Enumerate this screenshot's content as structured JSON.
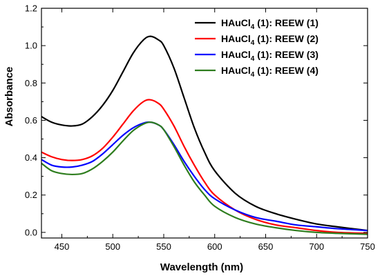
{
  "chart_data": {
    "type": "line",
    "title": "",
    "xlabel": "Wavelength (nm)",
    "ylabel": "Absorbance",
    "xlim": [
      430,
      750
    ],
    "ylim": [
      -0.03,
      1.2
    ],
    "xticks": [
      450,
      500,
      550,
      600,
      650,
      700,
      750
    ],
    "yticks": [
      0.0,
      0.2,
      0.4,
      0.6,
      0.8,
      1.0,
      1.2
    ],
    "ytick_labels": [
      "0.0",
      "0.2",
      "0.4",
      "0.6",
      "0.8",
      "1.0",
      "1.2"
    ],
    "grid": false,
    "legend_position": "top-right",
    "series": [
      {
        "name_main": "HAuCl",
        "name_sub": "4",
        "name_rest": " (1): REEW (1)",
        "color": "#000000",
        "x": [
          430,
          440,
          450,
          460,
          470,
          480,
          490,
          500,
          510,
          520,
          530,
          537,
          545,
          550,
          560,
          570,
          580,
          590,
          600,
          620,
          640,
          660,
          680,
          700,
          720,
          750
        ],
        "y": [
          0.62,
          0.59,
          0.575,
          0.57,
          0.58,
          0.62,
          0.68,
          0.76,
          0.86,
          0.96,
          1.03,
          1.05,
          1.03,
          1.0,
          0.88,
          0.72,
          0.56,
          0.43,
          0.33,
          0.21,
          0.14,
          0.1,
          0.07,
          0.045,
          0.03,
          0.01
        ]
      },
      {
        "name_main": "HAuCl",
        "name_sub": "4",
        "name_rest": " (1): REEW (2)",
        "color": "#ff0000",
        "x": [
          430,
          440,
          450,
          460,
          470,
          480,
          490,
          500,
          510,
          520,
          530,
          537,
          545,
          550,
          560,
          570,
          580,
          590,
          600,
          620,
          640,
          660,
          680,
          700,
          720,
          750
        ],
        "y": [
          0.43,
          0.405,
          0.39,
          0.385,
          0.39,
          0.41,
          0.45,
          0.51,
          0.58,
          0.65,
          0.7,
          0.71,
          0.69,
          0.66,
          0.57,
          0.46,
          0.36,
          0.27,
          0.2,
          0.12,
          0.07,
          0.04,
          0.025,
          0.01,
          0.0,
          -0.005
        ]
      },
      {
        "name_main": "HAuCl",
        "name_sub": "4",
        "name_rest": " (1): REEW (3)",
        "color": "#0000ff",
        "x": [
          430,
          440,
          450,
          460,
          470,
          480,
          490,
          500,
          510,
          520,
          530,
          537,
          545,
          550,
          560,
          570,
          580,
          590,
          600,
          620,
          640,
          660,
          680,
          700,
          720,
          750
        ],
        "y": [
          0.39,
          0.36,
          0.35,
          0.35,
          0.36,
          0.38,
          0.42,
          0.47,
          0.52,
          0.56,
          0.585,
          0.59,
          0.575,
          0.55,
          0.47,
          0.38,
          0.3,
          0.23,
          0.18,
          0.12,
          0.08,
          0.06,
          0.04,
          0.03,
          0.02,
          0.01
        ]
      },
      {
        "name_main": "HAuCl",
        "name_sub": "4",
        "name_rest": " (1): REEW (4)",
        "color": "#2e7d1e",
        "x": [
          430,
          440,
          450,
          460,
          470,
          480,
          490,
          500,
          510,
          520,
          530,
          537,
          545,
          550,
          560,
          570,
          580,
          590,
          600,
          620,
          640,
          660,
          680,
          700,
          720,
          750
        ],
        "y": [
          0.37,
          0.33,
          0.315,
          0.31,
          0.315,
          0.34,
          0.38,
          0.43,
          0.49,
          0.545,
          0.58,
          0.59,
          0.575,
          0.55,
          0.46,
          0.36,
          0.27,
          0.2,
          0.14,
          0.08,
          0.045,
          0.025,
          0.01,
          0.0,
          -0.005,
          -0.01
        ]
      }
    ]
  }
}
